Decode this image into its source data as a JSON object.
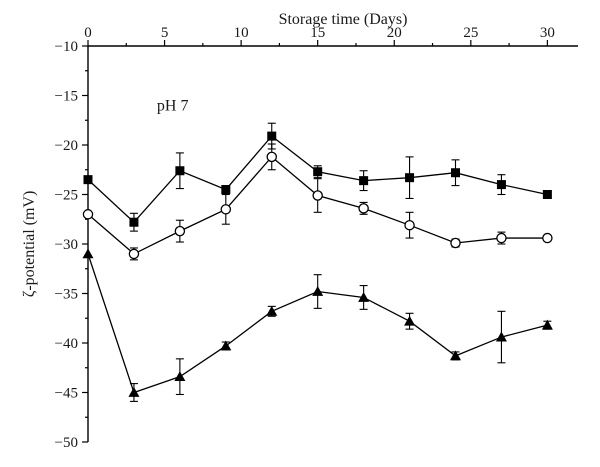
{
  "chart_data": {
    "type": "line",
    "xlabel": "Storage time (Days)",
    "ylabel": "ζ-potential (mV)",
    "annotation": "pH 7",
    "xlim": [
      0,
      32
    ],
    "ylim": [
      -50,
      -10
    ],
    "x_ticks": [
      0,
      5,
      10,
      15,
      20,
      25,
      30
    ],
    "y_ticks": [
      -10,
      -15,
      -20,
      -25,
      -30,
      -35,
      -40,
      -45,
      -50
    ],
    "x_axis_position": "top",
    "legend": "none",
    "grid": false,
    "x": [
      0,
      3,
      6,
      9,
      12,
      15,
      18,
      21,
      24,
      27,
      30
    ],
    "series": [
      {
        "marker": "filled-square",
        "values": [
          -23.5,
          -27.8,
          -22.6,
          -24.5,
          -19.1,
          -22.7,
          -23.6,
          -23.3,
          -22.8,
          -24.0,
          -25.0
        ],
        "errors": [
          0.0,
          0.9,
          1.8,
          0.4,
          1.3,
          0.6,
          1.0,
          2.1,
          1.3,
          1.0,
          0.0
        ]
      },
      {
        "marker": "open-circle",
        "values": [
          -27.0,
          -31.0,
          -28.7,
          -26.5,
          -21.2,
          -25.1,
          -26.4,
          -28.1,
          -29.9,
          -29.4,
          -29.4
        ],
        "errors": [
          0.0,
          0.6,
          1.1,
          1.5,
          1.3,
          1.7,
          0.6,
          1.3,
          0.4,
          0.6,
          0.0
        ]
      },
      {
        "marker": "filled-triangle",
        "values": [
          -31.0,
          -45.0,
          -43.4,
          -40.3,
          -36.8,
          -34.8,
          -35.4,
          -37.8,
          -41.3,
          -39.4,
          -38.2
        ],
        "errors": [
          0.0,
          0.9,
          1.8,
          0.4,
          0.5,
          1.7,
          1.2,
          0.8,
          0.4,
          2.6,
          0.4
        ]
      }
    ]
  }
}
